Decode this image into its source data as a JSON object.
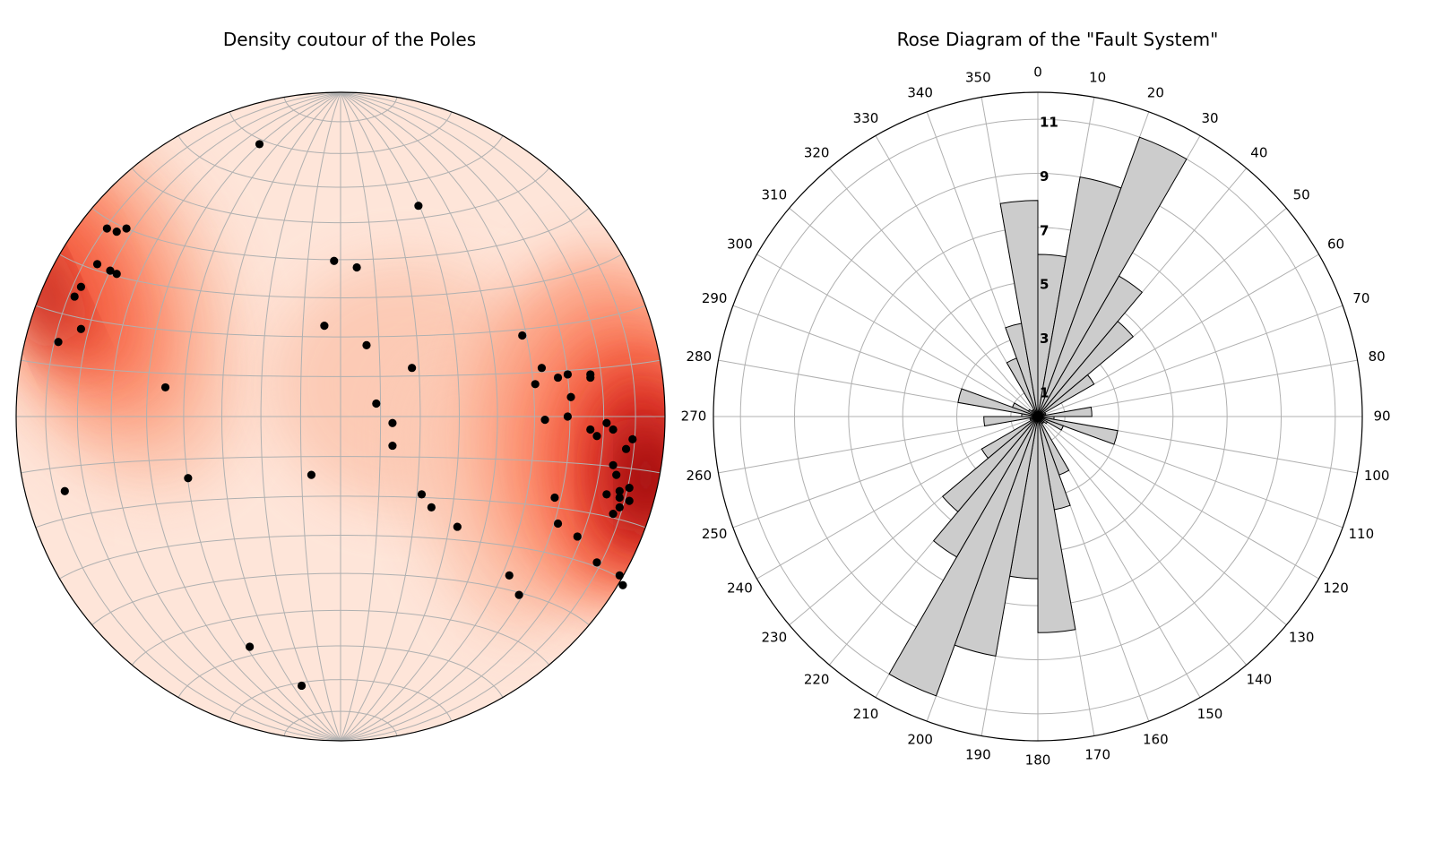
{
  "stereonet": {
    "title": "Density coutour of the Poles",
    "density_palette": [
      "#fee5d9",
      "#fcc9b4",
      "#fca486",
      "#fb7c5c",
      "#f05338",
      "#d42b25",
      "#b31218",
      "#82000c"
    ],
    "poles": [
      [
        -25,
        84
      ],
      [
        24,
        65
      ],
      [
        -2,
        48
      ],
      [
        5,
        46
      ],
      [
        -5,
        28
      ],
      [
        8,
        22
      ],
      [
        22,
        15
      ],
      [
        11,
        4
      ],
      [
        16,
        -2
      ],
      [
        16,
        -9
      ],
      [
        -54,
        9
      ],
      [
        -47,
        -19
      ],
      [
        -9,
        -18
      ],
      [
        25,
        -24
      ],
      [
        28,
        -28
      ],
      [
        36,
        -34
      ],
      [
        52,
        -49
      ],
      [
        55,
        -55
      ],
      [
        -28,
        -71
      ],
      [
        -12,
        -83
      ],
      [
        -72,
        58
      ],
      [
        -69,
        57
      ],
      [
        -66,
        58
      ],
      [
        -75,
        47
      ],
      [
        -69,
        44
      ],
      [
        -80,
        40
      ],
      [
        -82,
        37
      ],
      [
        -80,
        27
      ],
      [
        -87,
        23
      ],
      [
        -85,
        -23
      ],
      [
        -71,
        45
      ],
      [
        56,
        25
      ],
      [
        60,
        10
      ],
      [
        62,
        15
      ],
      [
        63,
        -1
      ],
      [
        67,
        12
      ],
      [
        70,
        13
      ],
      [
        71,
        6
      ],
      [
        70,
        0
      ],
      [
        77,
        13
      ],
      [
        77,
        12
      ],
      [
        77,
        -4
      ],
      [
        79,
        -6
      ],
      [
        82,
        -2
      ],
      [
        84,
        -4
      ],
      [
        88,
        -10
      ],
      [
        84,
        -15
      ],
      [
        85,
        -18
      ],
      [
        89,
        -22
      ],
      [
        86,
        -23
      ],
      [
        89,
        -26
      ],
      [
        86,
        -28
      ],
      [
        82,
        -24
      ],
      [
        86,
        -25
      ],
      [
        84,
        -30
      ],
      [
        66,
        -25
      ],
      [
        67,
        -33
      ],
      [
        73,
        -37
      ],
      [
        79,
        -45
      ],
      [
        86,
        -49
      ],
      [
        87,
        -52
      ],
      [
        90,
        -7
      ]
    ]
  },
  "rose": {
    "title": "Rose Diagram of the \"Fault System\"",
    "angle_ticks": [
      "0",
      "10",
      "20",
      "30",
      "40",
      "50",
      "60",
      "70",
      "80",
      "90",
      "100",
      "110",
      "120",
      "130",
      "140",
      "150",
      "160",
      "170",
      "180",
      "190",
      "200",
      "210",
      "220",
      "230",
      "240",
      "250",
      "260",
      "270",
      "280",
      "290",
      "300",
      "310",
      "320",
      "330",
      "340",
      "350"
    ],
    "radial_ticks": [
      "1",
      "3",
      "5",
      "7",
      "9",
      "11"
    ],
    "bar_color": "#cccccc"
  },
  "chart_data": [
    {
      "type": "scatter",
      "title": "Density coutour of the Poles",
      "projection": "equal-area stereonet (lower hemisphere)",
      "description_of_values": "pole positions as normalized net coordinates (-1..1)",
      "density_contours": true,
      "grid": true
    },
    {
      "type": "bar",
      "subtype": "polar rose",
      "title": "Rose Diagram of the \"Fault System\"",
      "bin_width_deg": 10,
      "bin_starts_deg": [
        0,
        10,
        20,
        30,
        40,
        50,
        60,
        70,
        80,
        90,
        100,
        110,
        120,
        130,
        140,
        150,
        160,
        170,
        180,
        190,
        200,
        210,
        220,
        230,
        240,
        250,
        260,
        270,
        280,
        290,
        300,
        310,
        320,
        330,
        340,
        350
      ],
      "values": [
        6,
        9,
        11,
        6,
        4.6,
        2.4,
        0.3,
        0.3,
        2,
        0.6,
        3,
        1,
        0.4,
        0.3,
        0.3,
        2.3,
        3.5,
        8,
        6,
        9,
        11,
        6,
        4.6,
        2.4,
        0.3,
        0.3,
        2,
        0.6,
        3,
        1,
        0.4,
        0.3,
        0.3,
        2.3,
        3.5,
        8
      ],
      "rlim": [
        0,
        12
      ],
      "radial_ticks": [
        1,
        3,
        5,
        7,
        9,
        11
      ],
      "grid": true
    }
  ]
}
